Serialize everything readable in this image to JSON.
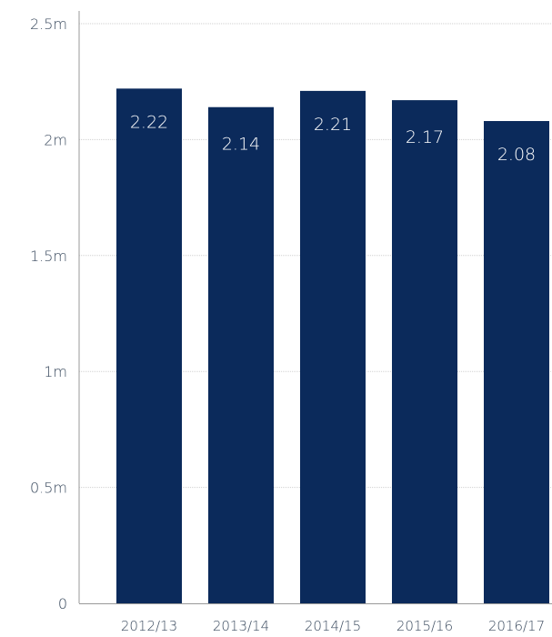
{
  "chart_data": {
    "type": "bar",
    "categories": [
      "2012/13",
      "2013/14",
      "2014/15",
      "2015/16",
      "2016/17"
    ],
    "values": [
      2.22,
      2.14,
      2.21,
      2.17,
      2.08
    ],
    "value_labels": [
      "2.22",
      "2.14",
      "2.21",
      "2.17",
      "2.08"
    ],
    "ylim": [
      0,
      2.5
    ],
    "yticks": [
      0,
      0.5,
      1,
      1.5,
      2,
      2.5
    ],
    "ytick_labels": [
      "0",
      "0.5m",
      "1m",
      "1.5m",
      "2m",
      "2.5m"
    ],
    "title": "",
    "xlabel": "",
    "ylabel": "",
    "grid": true,
    "legend": "none",
    "colors": {
      "bar": "#0b2a5b",
      "gridline": "#cfcfcf",
      "axis": "#999999",
      "value_text": "#ffffff",
      "tick_text": "#3a4a5e"
    }
  }
}
